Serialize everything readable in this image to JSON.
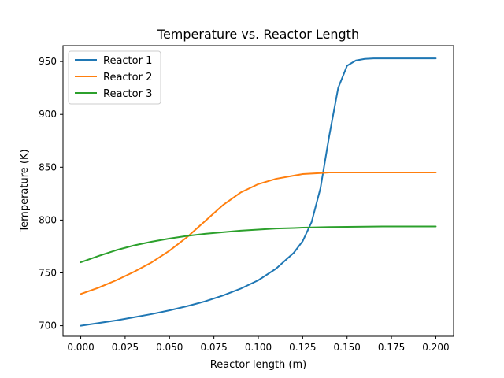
{
  "chart_data": {
    "type": "line",
    "title": "Temperature vs. Reactor Length",
    "xlabel": "Reactor length (m)",
    "ylabel": "Temperature (K)",
    "xlim": [
      -0.01,
      0.21
    ],
    "ylim": [
      690,
      965
    ],
    "xticks": [
      0.0,
      0.025,
      0.05,
      0.075,
      0.1,
      0.125,
      0.15,
      0.175,
      0.2
    ],
    "xtick_labels": [
      "0.000",
      "0.025",
      "0.050",
      "0.075",
      "0.100",
      "0.125",
      "0.150",
      "0.175",
      "0.200"
    ],
    "yticks": [
      700,
      750,
      800,
      850,
      900,
      950
    ],
    "ytick_labels": [
      "700",
      "750",
      "800",
      "850",
      "900",
      "950"
    ],
    "grid": false,
    "legend_position": "top-left",
    "x": [
      0.0,
      0.01,
      0.02,
      0.03,
      0.04,
      0.05,
      0.06,
      0.07,
      0.08,
      0.09,
      0.1,
      0.11,
      0.12,
      0.125,
      0.13,
      0.135,
      0.14,
      0.145,
      0.15,
      0.155,
      0.16,
      0.165,
      0.17,
      0.18,
      0.19,
      0.2
    ],
    "series": [
      {
        "name": "Reactor 1",
        "color": "#1f77b4",
        "values": [
          700,
          702.5,
          705,
          708,
          711,
          714.5,
          718.5,
          723,
          728.5,
          735,
          743,
          754,
          769,
          780,
          798,
          830,
          880,
          925,
          946,
          951,
          952.5,
          953,
          953,
          953,
          953,
          953
        ]
      },
      {
        "name": "Reactor 2",
        "color": "#ff7f0e",
        "values": [
          730,
          736,
          743,
          751,
          760,
          771,
          784,
          799,
          814,
          826,
          834,
          839,
          842,
          843.5,
          844,
          844.5,
          845,
          845,
          845,
          845,
          845,
          845,
          845,
          845,
          845,
          845
        ]
      },
      {
        "name": "Reactor 3",
        "color": "#2ca02c",
        "values": [
          760,
          766,
          771.5,
          776,
          779.5,
          782.5,
          785,
          787,
          788.5,
          790,
          791,
          792,
          792.5,
          792.8,
          793,
          793.2,
          793.4,
          793.5,
          793.6,
          793.7,
          793.8,
          793.9,
          794,
          794,
          794,
          794
        ]
      }
    ]
  }
}
